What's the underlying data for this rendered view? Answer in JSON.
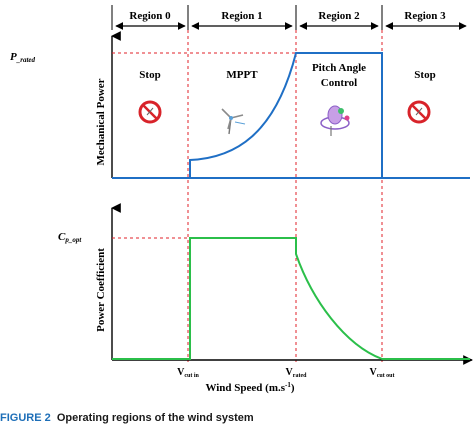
{
  "regions": [
    {
      "label": "Region 0"
    },
    {
      "label": "Region 1"
    },
    {
      "label": "Region 2"
    },
    {
      "label": "Region 3"
    }
  ],
  "top_panel": {
    "y_label": "Mechanical Power",
    "p_rated_label": "P_rated",
    "modes": {
      "stop_left": "Stop",
      "mppt": "MPPT",
      "pitch_line1": "Pitch Angle",
      "pitch_line2": "Control",
      "stop_right": "Stop"
    }
  },
  "bottom_panel": {
    "y_label": "Power Coefficient",
    "cp_label": "Cp_opt"
  },
  "x_axis": {
    "title": "Wind Speed (m.s",
    "title_sup": "-1",
    "title_end": ")",
    "v_cut_in": "cut in",
    "v_rated": "rated",
    "v_cut_out": "cut out",
    "v_prefix": "V"
  },
  "caption": {
    "label": "FIGURE 2",
    "text": "Operating regions of the wind system"
  },
  "colors": {
    "power_curve": "#1f6fc5",
    "cp_curve": "#2bbf4a",
    "dashed_boundaries": "#e0202a",
    "stop_sign": "#d8232a"
  }
}
